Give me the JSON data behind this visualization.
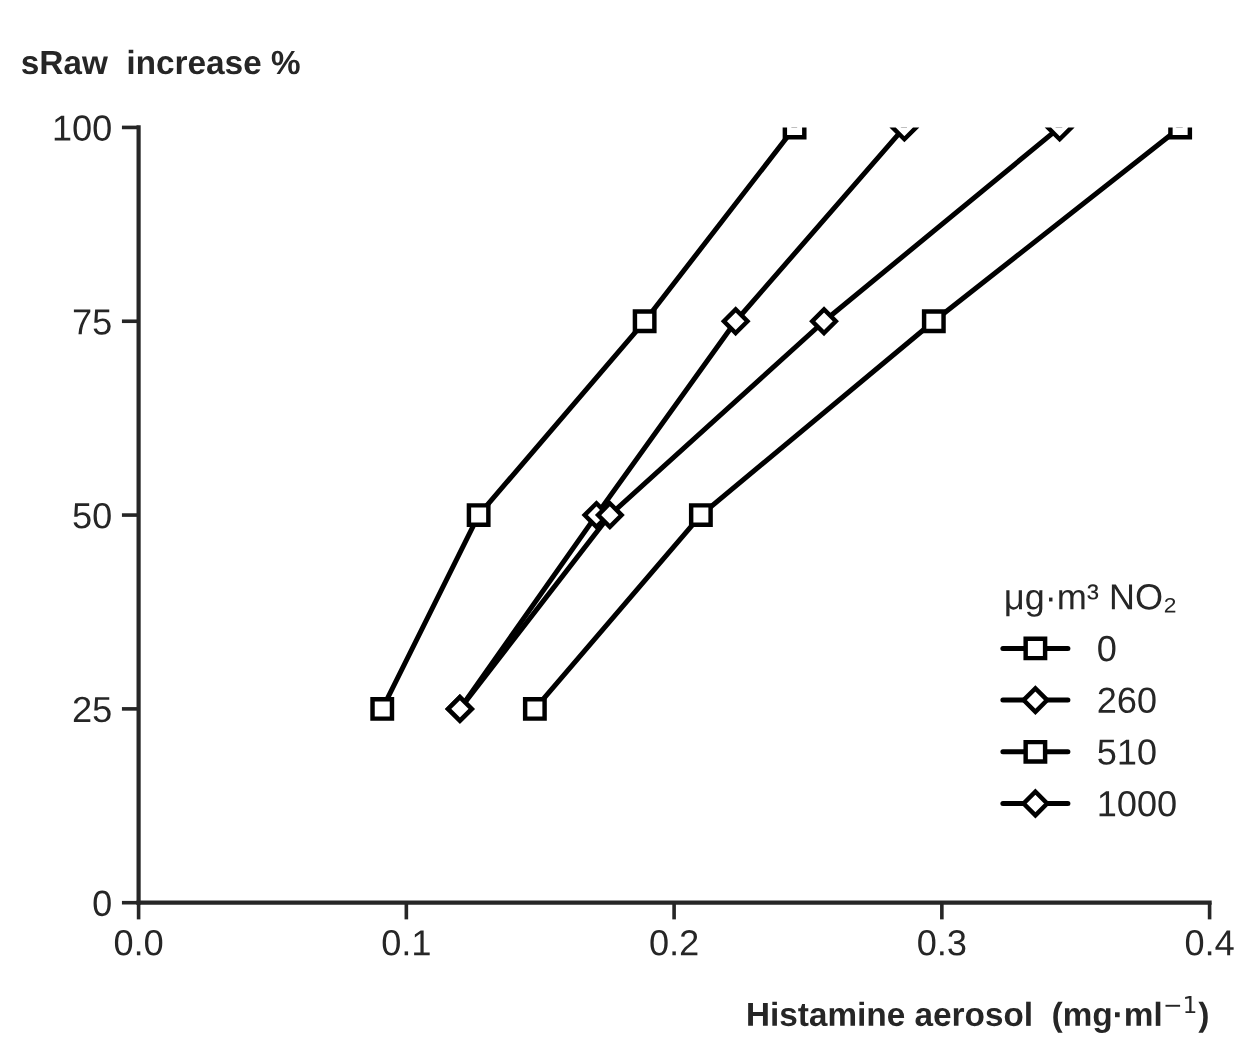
{
  "chart_data": {
    "type": "line",
    "xlabel": "Histamine aerosol  (mg·ml$^{−1}$)",
    "ylabel": "sRaw  increase %",
    "legend_title": "μg·m³ NO₂",
    "series": [
      {
        "name": "0",
        "color": "#000000",
        "marker": "square",
        "x": [
          0.148,
          0.21,
          0.297,
          0.389
        ],
        "values": [
          25,
          50,
          75,
          100
        ]
      },
      {
        "name": "260",
        "color": "#000000",
        "marker": "diamond",
        "x": [
          0.12,
          0.171,
          0.223,
          0.286
        ],
        "values": [
          25,
          50,
          75,
          100
        ]
      },
      {
        "name": "510",
        "color": "#000000",
        "marker": "square",
        "x": [
          0.091,
          0.127,
          0.189,
          0.245
        ],
        "values": [
          25,
          50,
          75,
          100
        ]
      },
      {
        "name": "1000",
        "color": "#000000",
        "marker": "diamond",
        "x": [
          0.12,
          0.176,
          0.256,
          0.344
        ],
        "values": [
          25,
          50,
          75,
          100
        ]
      }
    ],
    "xlim": [
      0.0,
      0.4
    ],
    "xticks": [
      {
        "value": 0.0,
        "label": "0.0"
      },
      0.1,
      0.2,
      0.3,
      0.4
    ],
    "ylim": [
      0,
      100
    ],
    "yticks": [
      0,
      25,
      50,
      75,
      100
    ],
    "grid": false,
    "legend": "bottom right",
    "line_style": "solid"
  }
}
